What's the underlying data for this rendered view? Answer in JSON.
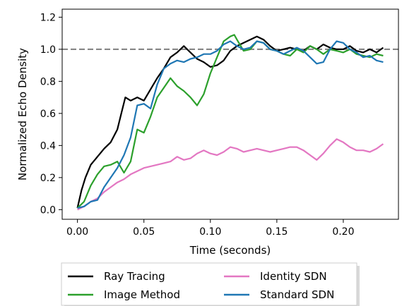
{
  "chart_data": {
    "type": "line",
    "title": "",
    "xlabel": "Time (seconds)",
    "ylabel": "Normalized Echo Density",
    "xlim": [
      -0.0115,
      0.2415
    ],
    "ylim": [
      -0.06,
      1.25
    ],
    "x_ticks": [
      0.0,
      0.05,
      0.1,
      0.15,
      0.2
    ],
    "x_tick_labels": [
      "0.00",
      "0.05",
      "0.10",
      "0.15",
      "0.20"
    ],
    "y_ticks": [
      0.0,
      0.2,
      0.4,
      0.6,
      0.8,
      1.0,
      1.2
    ],
    "y_tick_labels": [
      "0.0",
      "0.2",
      "0.4",
      "0.6",
      "0.8",
      "1.0",
      "1.2"
    ],
    "reference_line": {
      "y": 1.0,
      "style": "dashed",
      "color": "#7f7f7f"
    },
    "grid": false,
    "legend": {
      "placement": "below",
      "columns": 2
    },
    "series": [
      {
        "name": "Ray Tracing",
        "color": "#000000",
        "x": [
          0.0,
          0.003,
          0.006,
          0.01,
          0.015,
          0.02,
          0.025,
          0.03,
          0.033,
          0.036,
          0.04,
          0.045,
          0.05,
          0.055,
          0.06,
          0.065,
          0.07,
          0.075,
          0.08,
          0.085,
          0.09,
          0.095,
          0.1,
          0.105,
          0.11,
          0.115,
          0.12,
          0.125,
          0.13,
          0.135,
          0.14,
          0.145,
          0.15,
          0.155,
          0.16,
          0.165,
          0.17,
          0.175,
          0.18,
          0.185,
          0.19,
          0.195,
          0.2,
          0.205,
          0.21,
          0.215,
          0.22,
          0.225,
          0.23
        ],
        "y": [
          0.01,
          0.12,
          0.2,
          0.28,
          0.33,
          0.38,
          0.42,
          0.5,
          0.6,
          0.7,
          0.68,
          0.7,
          0.68,
          0.75,
          0.82,
          0.88,
          0.95,
          0.98,
          1.02,
          0.98,
          0.94,
          0.92,
          0.89,
          0.9,
          0.93,
          0.99,
          1.02,
          1.04,
          1.06,
          1.08,
          1.06,
          1.02,
          0.99,
          1.0,
          1.01,
          1.0,
          0.99,
          1.02,
          1.0,
          1.03,
          1.01,
          1.0,
          1.0,
          1.02,
          0.99,
          0.98,
          1.0,
          0.98,
          1.01
        ]
      },
      {
        "name": "Image Method",
        "color": "#2ca02c",
        "x": [
          0.0,
          0.005,
          0.01,
          0.015,
          0.02,
          0.025,
          0.03,
          0.035,
          0.04,
          0.045,
          0.05,
          0.055,
          0.06,
          0.065,
          0.07,
          0.075,
          0.08,
          0.085,
          0.09,
          0.095,
          0.1,
          0.105,
          0.11,
          0.115,
          0.118,
          0.12,
          0.125,
          0.13,
          0.135,
          0.14,
          0.145,
          0.15,
          0.155,
          0.16,
          0.165,
          0.17,
          0.175,
          0.18,
          0.185,
          0.19,
          0.195,
          0.2,
          0.205,
          0.21,
          0.215,
          0.22,
          0.225,
          0.23
        ],
        "y": [
          0.01,
          0.05,
          0.15,
          0.22,
          0.27,
          0.28,
          0.3,
          0.23,
          0.3,
          0.5,
          0.48,
          0.58,
          0.7,
          0.76,
          0.82,
          0.77,
          0.74,
          0.7,
          0.65,
          0.72,
          0.85,
          0.95,
          1.05,
          1.08,
          1.09,
          1.06,
          0.99,
          1.0,
          1.05,
          1.04,
          1.0,
          0.99,
          0.97,
          0.96,
          1.0,
          0.98,
          1.02,
          1.0,
          0.97,
          1.0,
          0.99,
          0.98,
          1.0,
          0.97,
          0.96,
          0.95,
          0.97,
          0.96
        ]
      },
      {
        "name": "Identity SDN",
        "color": "#e377c2",
        "x": [
          0.0,
          0.005,
          0.01,
          0.015,
          0.02,
          0.025,
          0.03,
          0.035,
          0.04,
          0.045,
          0.05,
          0.055,
          0.06,
          0.065,
          0.07,
          0.075,
          0.08,
          0.085,
          0.09,
          0.095,
          0.1,
          0.105,
          0.11,
          0.115,
          0.12,
          0.125,
          0.13,
          0.135,
          0.14,
          0.145,
          0.15,
          0.155,
          0.16,
          0.165,
          0.17,
          0.175,
          0.18,
          0.185,
          0.19,
          0.195,
          0.2,
          0.205,
          0.21,
          0.215,
          0.22,
          0.225,
          0.23
        ],
        "y": [
          0.0,
          0.02,
          0.05,
          0.07,
          0.11,
          0.14,
          0.17,
          0.19,
          0.22,
          0.24,
          0.26,
          0.27,
          0.28,
          0.29,
          0.3,
          0.33,
          0.31,
          0.32,
          0.35,
          0.37,
          0.35,
          0.34,
          0.36,
          0.39,
          0.38,
          0.36,
          0.37,
          0.38,
          0.37,
          0.36,
          0.37,
          0.38,
          0.39,
          0.39,
          0.37,
          0.34,
          0.31,
          0.35,
          0.4,
          0.44,
          0.42,
          0.39,
          0.37,
          0.37,
          0.36,
          0.38,
          0.41
        ]
      },
      {
        "name": "Standard SDN",
        "color": "#1f77b4",
        "x": [
          0.0,
          0.005,
          0.01,
          0.015,
          0.02,
          0.025,
          0.03,
          0.035,
          0.04,
          0.045,
          0.05,
          0.055,
          0.06,
          0.065,
          0.07,
          0.075,
          0.08,
          0.085,
          0.09,
          0.095,
          0.1,
          0.105,
          0.11,
          0.115,
          0.12,
          0.125,
          0.13,
          0.135,
          0.14,
          0.145,
          0.15,
          0.155,
          0.16,
          0.165,
          0.17,
          0.175,
          0.18,
          0.185,
          0.19,
          0.195,
          0.2,
          0.205,
          0.21,
          0.215,
          0.22,
          0.225,
          0.23
        ],
        "y": [
          0.01,
          0.02,
          0.05,
          0.06,
          0.14,
          0.2,
          0.26,
          0.34,
          0.45,
          0.65,
          0.66,
          0.63,
          0.78,
          0.88,
          0.91,
          0.93,
          0.92,
          0.94,
          0.95,
          0.97,
          0.97,
          0.99,
          1.03,
          1.05,
          1.02,
          1.0,
          1.01,
          1.05,
          1.04,
          1.0,
          0.99,
          0.97,
          0.99,
          1.01,
          0.99,
          0.95,
          0.91,
          0.92,
          1.0,
          1.05,
          1.04,
          1.0,
          0.98,
          0.95,
          0.96,
          0.93,
          0.92
        ]
      }
    ]
  }
}
